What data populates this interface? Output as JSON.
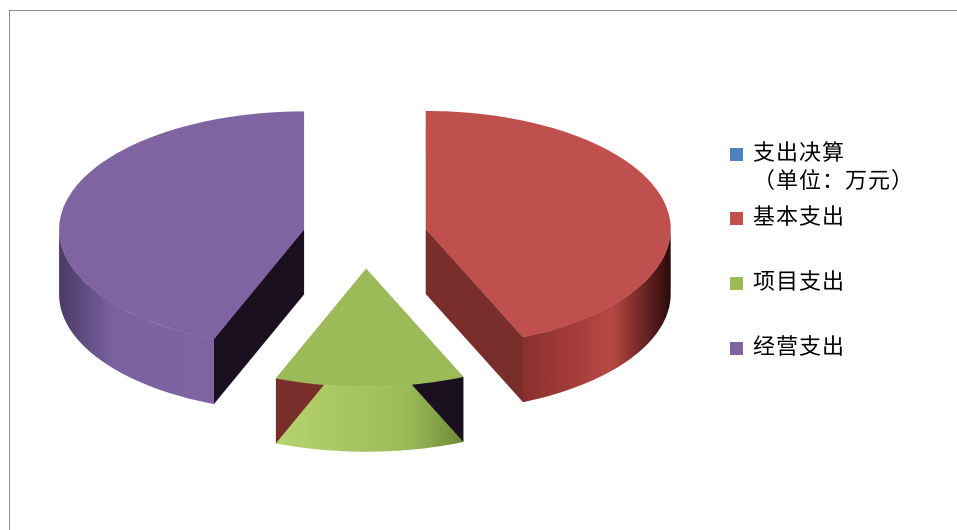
{
  "chart_data": {
    "type": "pie",
    "style": "3d-exploded",
    "title": "",
    "legend_position": "right",
    "series": [
      {
        "name": "支出决算\n（单位：万元）",
        "categories": [
          "基本支出",
          "项目支出",
          "经营支出"
        ],
        "values": [
          43.5,
          12.5,
          44.0
        ],
        "color": "#4f81bd"
      }
    ],
    "categories": [
      "基本支出",
      "项目支出",
      "经营支出"
    ],
    "colors": [
      "#c0504d",
      "#9bbb59",
      "#8064a2"
    ]
  },
  "legend": {
    "series_label": "支出决算\n（单位：万元）",
    "series_color": "#4f81bd",
    "items": [
      {
        "label": "基本支出",
        "color": "#c0504d"
      },
      {
        "label": "项目支出",
        "color": "#9bbb59"
      },
      {
        "label": "经营支出",
        "color": "#8064a2"
      }
    ]
  }
}
